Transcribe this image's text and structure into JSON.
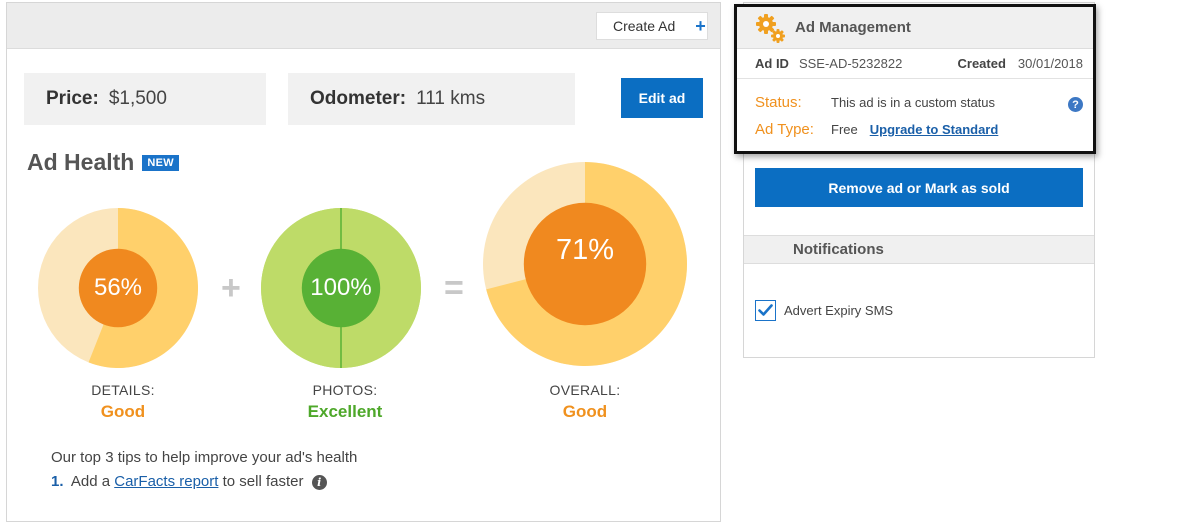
{
  "toolbar": {
    "create_ad_label": "Create Ad",
    "create_ad_icon": "plus-icon"
  },
  "stats": {
    "price_label": "Price:",
    "price_value": "$1,500",
    "odometer_label": "Odometer:",
    "odometer_value": "111 kms",
    "edit_ad_label": "Edit ad"
  },
  "ad_health": {
    "title": "Ad Health",
    "badge": "NEW",
    "metrics": [
      {
        "percent_text": "56%",
        "fraction": 0.56,
        "caption": "DETAILS:",
        "rating": "Good",
        "rating_color": "#f0911e",
        "ring_color": "#ffd06b",
        "ring_bg": "#fbe6bd",
        "core_color": "#f0891f"
      },
      {
        "percent_text": "100%",
        "fraction": 1.0,
        "caption": "PHOTOS:",
        "rating": "Excellent",
        "rating_color": "#4ea82a",
        "ring_color": "#bedb68",
        "ring_bg": "#bedb68",
        "core_color": "#58b135"
      },
      {
        "percent_text": "71%",
        "fraction": 0.71,
        "caption": "OVERALL:",
        "rating": "Good",
        "rating_color": "#f0911e",
        "ring_color": "#ffd06b",
        "ring_bg": "#fbe6bd",
        "core_color": "#f0891f"
      }
    ],
    "operators": [
      "+",
      "="
    ]
  },
  "tips": {
    "intro": "Our top 3 tips to help improve your ad's health",
    "items": [
      {
        "num": "1.",
        "before": "Add a",
        "link": "CarFacts report",
        "after": "to sell faster"
      }
    ]
  },
  "ad_management": {
    "title": "Ad Management",
    "icon": "gears-icon",
    "ad_id_label": "Ad ID",
    "ad_id_value": "SSE-AD-5232822",
    "created_label": "Created",
    "created_value": "30/01/2018",
    "status_label": "Status:",
    "status_value": "This ad is in a custom status",
    "type_label": "Ad Type:",
    "type_value": "Free",
    "upgrade_link": "Upgrade to Standard",
    "help_icon": "question-icon"
  },
  "actions": {
    "remove_label": "Remove ad or Mark as sold"
  },
  "notifications": {
    "title": "Notifications",
    "items": [
      {
        "label": "Advert Expiry SMS",
        "checked": true
      }
    ]
  },
  "colors": {
    "primary_blue": "#0b6ec2",
    "accent_orange": "#f0911e",
    "accent_green": "#4ea82a"
  }
}
